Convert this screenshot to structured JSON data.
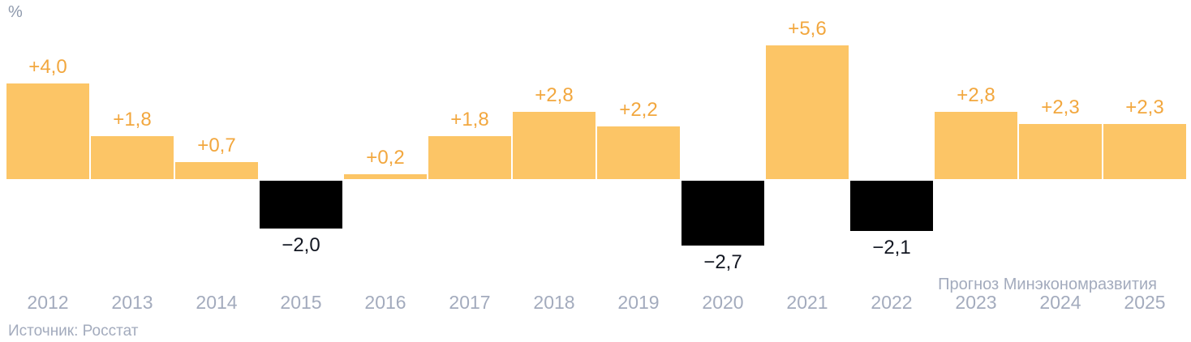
{
  "unit_label": "%",
  "forecast_note": "Прогноз Минэкономразвития",
  "source_note": "Источник: Росстат",
  "colors": {
    "positive_bar": "#fcc566",
    "negative_bar": "#000000",
    "positive_label": "#f2a73e",
    "negative_label": "#131722",
    "axis_text": "#a3abbd",
    "background": "#ffffff"
  },
  "chart_data": {
    "type": "bar",
    "title": "",
    "xlabel": "",
    "ylabel": "%",
    "ylim": [
      -3,
      6
    ],
    "grid": false,
    "legend": false,
    "baseline": 0,
    "categories": [
      "2012",
      "2013",
      "2014",
      "2015",
      "2016",
      "2017",
      "2018",
      "2019",
      "2020",
      "2021",
      "2022",
      "2023",
      "2024",
      "2025"
    ],
    "values": [
      4.0,
      1.8,
      0.7,
      -2.0,
      0.2,
      1.8,
      2.8,
      2.2,
      -2.7,
      5.6,
      -2.1,
      2.8,
      2.3,
      2.3
    ],
    "labels": [
      "+4,0",
      "+1,8",
      "+0,7",
      "−2,0",
      "+0,2",
      "+1,8",
      "+2,8",
      "+2,2",
      "−2,7",
      "+5,6",
      "−2,1",
      "+2,8",
      "+2,3",
      "+2,3"
    ],
    "forecast_categories": [
      "2023",
      "2024",
      "2025"
    ],
    "forecast_note": "Прогноз Минэкономразвития",
    "source": "Источник: Росстат"
  }
}
